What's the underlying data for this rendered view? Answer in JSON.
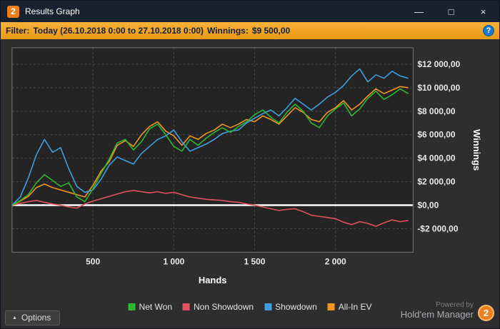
{
  "window": {
    "title": "Results Graph",
    "logo_text": "2",
    "controls": {
      "minimize": "—",
      "maximize": "□",
      "close": "×"
    }
  },
  "filter_bar": {
    "filter_label": "Filter:",
    "filter_value": "Today (26.10.2018 0:00 to 27.10.2018 0:00)",
    "winnings_label": "Winnings:",
    "winnings_value": "$9 500,00",
    "help_icon": "?"
  },
  "chart_data": {
    "type": "line",
    "title": "",
    "xlabel": "Hands",
    "ylabel": "Winnings",
    "grid": true,
    "legend_position": "bottom",
    "xlim": [
      0,
      2480
    ],
    "ylim": [
      -4000,
      13400
    ],
    "zero_line": 0,
    "x_ticks": [
      500,
      1000,
      1500,
      2000
    ],
    "x_tick_labels": [
      "500",
      "1 000",
      "1 500",
      "2 000"
    ],
    "y_ticks": [
      12000,
      10000,
      8000,
      6000,
      4000,
      2000,
      0,
      -2000
    ],
    "y_tick_labels": [
      "$12 000,00",
      "$10 000,00",
      "$8 000,00",
      "$6 000,00",
      "$4 000,00",
      "$2 000,00",
      "$0,00",
      "-$2 000,00"
    ],
    "x": [
      0,
      50,
      100,
      150,
      200,
      250,
      300,
      350,
      400,
      450,
      500,
      550,
      600,
      650,
      700,
      750,
      800,
      850,
      900,
      950,
      1000,
      1050,
      1100,
      1150,
      1200,
      1250,
      1300,
      1350,
      1400,
      1450,
      1500,
      1550,
      1600,
      1650,
      1700,
      1750,
      1800,
      1850,
      1900,
      1950,
      2000,
      2050,
      2100,
      2150,
      2200,
      2250,
      2300,
      2350,
      2400,
      2450
    ],
    "series": [
      {
        "name": "Net Won",
        "color": "#2eb82e",
        "values": [
          0,
          400,
          900,
          1900,
          2600,
          2100,
          1600,
          1900,
          700,
          300,
          1400,
          2700,
          3900,
          5300,
          5600,
          4700,
          5400,
          6500,
          6900,
          6000,
          5000,
          4600,
          5600,
          5100,
          5700,
          6200,
          6600,
          6200,
          6700,
          7100,
          7700,
          8100,
          7500,
          7000,
          7900,
          8600,
          8000,
          7000,
          6600,
          7600,
          8200,
          8700,
          7600,
          8200,
          9100,
          9700,
          9000,
          9400,
          9900,
          9500
        ]
      },
      {
        "name": "Non Showdown",
        "color": "#e15260",
        "values": [
          0,
          150,
          300,
          400,
          250,
          100,
          0,
          -150,
          -250,
          100,
          350,
          550,
          750,
          950,
          1150,
          1250,
          1150,
          1050,
          1150,
          1000,
          1100,
          900,
          700,
          600,
          500,
          450,
          400,
          300,
          250,
          100,
          0,
          -150,
          -300,
          -450,
          -350,
          -300,
          -550,
          -850,
          -950,
          -1050,
          -1150,
          -1450,
          -1650,
          -1400,
          -1550,
          -1800,
          -1500,
          -1250,
          -1400,
          -1300
        ]
      },
      {
        "name": "Showdown",
        "color": "#3f9fe0",
        "values": [
          0,
          700,
          2300,
          4300,
          5600,
          4500,
          4900,
          3100,
          1600,
          1100,
          1300,
          2200,
          3400,
          4100,
          3800,
          3500,
          4400,
          5000,
          5600,
          5900,
          6400,
          5400,
          4600,
          4900,
          5200,
          5600,
          6100,
          6300,
          6400,
          7000,
          7400,
          7800,
          8100,
          7600,
          8300,
          9100,
          8600,
          8100,
          8600,
          9200,
          9600,
          10200,
          11000,
          11600,
          10500,
          11100,
          10800,
          11400,
          11000,
          10800
        ]
      },
      {
        "name": "All-In EV",
        "color": "#f29422",
        "values": [
          0,
          350,
          750,
          1500,
          1800,
          1500,
          1300,
          1100,
          900,
          700,
          1700,
          2900,
          3700,
          5100,
          5500,
          5000,
          6000,
          6700,
          7100,
          6300,
          5900,
          5100,
          5900,
          5600,
          6100,
          6400,
          6900,
          6600,
          6900,
          7300,
          7100,
          7600,
          7300,
          6900,
          7600,
          8300,
          7900,
          7300,
          7100,
          7900,
          8300,
          8900,
          8100,
          8600,
          9300,
          9900,
          9500,
          9800,
          10100,
          10000
        ]
      }
    ]
  },
  "footer": {
    "options_label": "Options",
    "options_chevron": "▲",
    "powered_by": "Powered by",
    "brand": "Hold'em Manager",
    "brand_logo": "2"
  }
}
